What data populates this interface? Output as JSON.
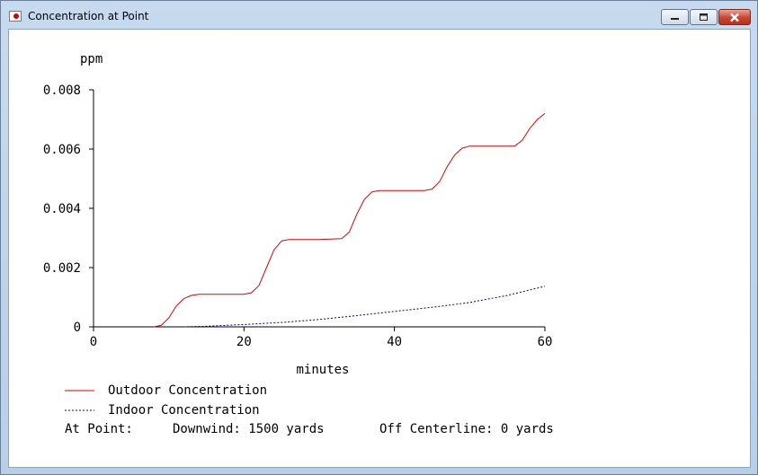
{
  "window": {
    "title": "Concentration at Point",
    "icon": "app-icon",
    "buttons": {
      "minimize": "minimize-icon",
      "maximize": "maximize-icon",
      "close": "close-icon"
    }
  },
  "chart_data": {
    "type": "line",
    "ylabel": "ppm",
    "xlabel": "minutes",
    "xlim": [
      0,
      60
    ],
    "ylim": [
      0,
      0.008
    ],
    "x_ticks": [
      "0",
      "20",
      "40",
      "60"
    ],
    "y_ticks": [
      "0",
      "0.002",
      "0.004",
      "0.006",
      "0.008"
    ],
    "grid": false,
    "series": [
      {
        "name": "Outdoor Concentration",
        "color": "#e00000",
        "style": "solid",
        "points": [
          [
            8,
            0
          ],
          [
            9,
            5e-05
          ],
          [
            10,
            0.0003
          ],
          [
            11,
            0.0007
          ],
          [
            12,
            0.00095
          ],
          [
            13,
            0.00106
          ],
          [
            14,
            0.0011
          ],
          [
            18,
            0.0011
          ],
          [
            20,
            0.0011
          ],
          [
            21,
            0.00115
          ],
          [
            22,
            0.0014
          ],
          [
            23,
            0.002
          ],
          [
            24,
            0.0026
          ],
          [
            25,
            0.0029
          ],
          [
            26,
            0.00295
          ],
          [
            30,
            0.00295
          ],
          [
            33,
            0.00298
          ],
          [
            34,
            0.0032
          ],
          [
            35,
            0.0038
          ],
          [
            36,
            0.0043
          ],
          [
            37,
            0.00455
          ],
          [
            38,
            0.0046
          ],
          [
            44,
            0.0046
          ],
          [
            45,
            0.00465
          ],
          [
            46,
            0.0049
          ],
          [
            47,
            0.0054
          ],
          [
            48,
            0.0058
          ],
          [
            49,
            0.00603
          ],
          [
            50,
            0.0061
          ],
          [
            56,
            0.0061
          ],
          [
            57,
            0.0063
          ],
          [
            58,
            0.0067
          ],
          [
            59,
            0.007
          ],
          [
            60,
            0.0072
          ]
        ]
      },
      {
        "name": "Indoor Concentration",
        "color": "#00008b",
        "style": "dotted",
        "points": [
          [
            12,
            0
          ],
          [
            15,
            2e-05
          ],
          [
            20,
            8e-05
          ],
          [
            25,
            0.00015
          ],
          [
            30,
            0.00025
          ],
          [
            35,
            0.00038
          ],
          [
            40,
            0.00052
          ],
          [
            45,
            0.00066
          ],
          [
            50,
            0.00082
          ],
          [
            55,
            0.00106
          ],
          [
            60,
            0.00137
          ]
        ]
      }
    ],
    "legend_placement": "bottom-left"
  },
  "footer": {
    "at_point_label": "At Point:",
    "downwind": "Downwind: 1500 yards",
    "off_centerline": "Off Centerline: 0 yards"
  }
}
